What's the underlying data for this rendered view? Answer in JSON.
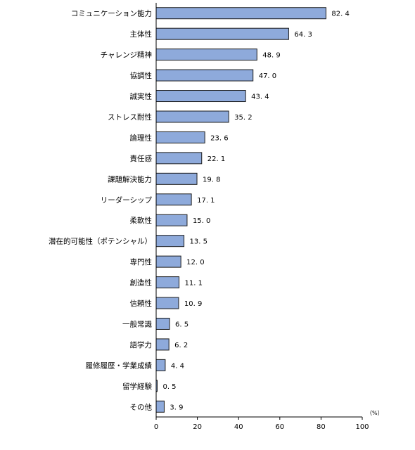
{
  "chart_data": {
    "type": "bar",
    "orientation": "horizontal",
    "categories": [
      "コミュニケーション能力",
      "主体性",
      "チャレンジ精神",
      "協調性",
      "誠実性",
      "ストレス耐性",
      "論理性",
      "責任感",
      "課題解決能力",
      "リーダーシップ",
      "柔軟性",
      "潜在的可能性（ポテンシャル）",
      "専門性",
      "創造性",
      "信頼性",
      "一般常識",
      "語学力",
      "履修履歴・学業成績",
      "留学経験",
      "その他"
    ],
    "values": [
      82.4,
      64.3,
      48.9,
      47.0,
      43.4,
      35.2,
      23.6,
      22.1,
      19.8,
      17.1,
      15.0,
      13.5,
      12.0,
      11.1,
      10.9,
      6.5,
      6.2,
      4.4,
      0.5,
      3.9
    ],
    "value_labels": [
      "82. 4",
      "64. 3",
      "48. 9",
      "47. 0",
      "43. 4",
      "35. 2",
      "23. 6",
      "22. 1",
      "19. 8",
      "17. 1",
      "15. 0",
      "13. 5",
      "12. 0",
      "11. 1",
      "10. 9",
      "6. 5",
      "6. 2",
      "4. 4",
      "0. 5",
      "3. 9"
    ],
    "xlim": [
      0,
      100
    ],
    "xticks": [
      0,
      20,
      40,
      60,
      80,
      100
    ],
    "unit_label": "（%）",
    "grid": false,
    "bar_color": "#8eaadb",
    "bar_edge_color": "#1a1a1a"
  }
}
